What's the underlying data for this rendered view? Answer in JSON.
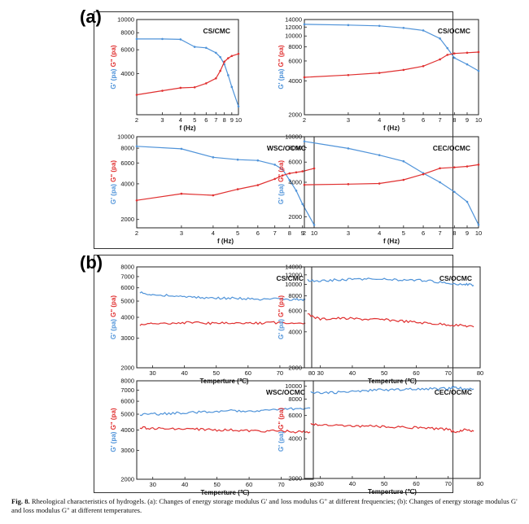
{
  "panels": [
    {
      "letter": "(a)"
    },
    {
      "letter": "(b)"
    }
  ],
  "caption": {
    "label": "Fig. 8.",
    "text": "Rheological characteristics of hydrogels. (a): Changes of energy storage modulus G' and loss modulus G\" at different frequencies; (b): Changes of energy storage modulus G' and loss modulus G\" at different temperatures."
  },
  "colors": {
    "storage": "#4f93d9",
    "loss": "#e03030"
  },
  "chart_data": [
    {
      "type": "line",
      "title": "CS/CMC",
      "xlabel": "f (Hz)",
      "ylabel_storage": "G' (pa)",
      "ylabel_loss": "G\" (pa)",
      "x_scale": "log",
      "y_scale": "log",
      "xlim": [
        2,
        10
      ],
      "ylim": [
        2000,
        10000
      ],
      "x_ticks": [
        "2",
        "3",
        "4",
        "5",
        "6",
        "7",
        "8",
        "9",
        "10"
      ],
      "y_ticks": [
        "4000",
        "6000",
        "8000",
        "10000"
      ],
      "series": [
        {
          "x": [
            2,
            3,
            4,
            5,
            6,
            7,
            7.5,
            8,
            8.5,
            9,
            10
          ],
          "values": [
            7200,
            7200,
            7150,
            6300,
            6200,
            5700,
            5300,
            4700,
            3900,
            3200,
            2300
          ]
        },
        {
          "x": [
            2,
            3,
            4,
            5,
            6,
            7,
            7.5,
            8,
            8.5,
            9,
            10
          ],
          "values": [
            2800,
            3000,
            3150,
            3180,
            3400,
            3700,
            4200,
            4900,
            5200,
            5400,
            5600
          ]
        }
      ]
    },
    {
      "type": "line",
      "title": "CS/OCMC",
      "xlabel": "f (Hz)",
      "ylabel_storage": "G' (pa)",
      "ylabel_loss": "G\" (pa)",
      "x_scale": "log",
      "y_scale": "log",
      "xlim": [
        2,
        10
      ],
      "ylim": [
        2000,
        14000
      ],
      "x_ticks": [
        "2",
        "3",
        "4",
        "5",
        "6",
        "7",
        "8",
        "9",
        "10"
      ],
      "y_ticks": [
        "2000",
        "4000",
        "6000",
        "8000",
        "10000",
        "12000",
        "14000"
      ],
      "series": [
        {
          "x": [
            2,
            3,
            4,
            5,
            6,
            7,
            7.5,
            8,
            9,
            10
          ],
          "values": [
            12700,
            12500,
            12300,
            11800,
            11200,
            9500,
            7800,
            6400,
            5600,
            4900
          ]
        },
        {
          "x": [
            2,
            3,
            4,
            5,
            6,
            7,
            7.5,
            8,
            9,
            10
          ],
          "values": [
            4300,
            4500,
            4700,
            5000,
            5400,
            6200,
            6800,
            7000,
            7100,
            7200
          ]
        }
      ]
    },
    {
      "type": "line",
      "title": "WSC/OCMC",
      "xlabel": "f (Hz)",
      "ylabel_storage": "G' (pa)",
      "ylabel_loss": "G\" (pa)",
      "x_scale": "log",
      "y_scale": "log",
      "xlim": [
        2,
        10
      ],
      "ylim": [
        1700,
        10000
      ],
      "x_ticks": [
        "2",
        "3",
        "4",
        "5",
        "6",
        "7",
        "8",
        "9",
        "10"
      ],
      "y_ticks": [
        "2000",
        "4000",
        "6000",
        "8000",
        "10000"
      ],
      "series": [
        {
          "x": [
            2,
            3,
            4,
            5,
            6,
            7,
            7.5,
            8,
            8.5,
            9,
            10
          ],
          "values": [
            8300,
            7900,
            6700,
            6400,
            6300,
            5800,
            5300,
            4300,
            3500,
            2700,
            1800
          ]
        },
        {
          "x": [
            2,
            3,
            4,
            5,
            6,
            7,
            7.5,
            8,
            8.5,
            9,
            10
          ],
          "values": [
            2900,
            3300,
            3200,
            3600,
            3900,
            4400,
            4700,
            4900,
            5000,
            5100,
            5400
          ]
        }
      ]
    },
    {
      "type": "line",
      "title": "CEC/OCMC",
      "xlabel": "f (Hz)",
      "ylabel_storage": "G' (pa)",
      "ylabel_loss": "G\" (pa)",
      "x_scale": "log",
      "y_scale": "log",
      "xlim": [
        2,
        10
      ],
      "ylim": [
        1600,
        10000
      ],
      "x_ticks": [
        "2",
        "3",
        "4",
        "5",
        "6",
        "7",
        "8",
        "9",
        "10"
      ],
      "y_ticks": [
        "2000",
        "4000",
        "6000",
        "8000",
        "10000"
      ],
      "series": [
        {
          "x": [
            2,
            3,
            4,
            5,
            6,
            7,
            8,
            9,
            10
          ],
          "values": [
            9100,
            7900,
            6900,
            6100,
            4800,
            4000,
            3300,
            2700,
            1700
          ]
        },
        {
          "x": [
            2,
            3,
            4,
            5,
            6,
            7,
            8,
            9,
            10
          ],
          "values": [
            3800,
            3850,
            3900,
            4200,
            4700,
            5300,
            5400,
            5500,
            5700
          ]
        }
      ]
    },
    {
      "type": "line",
      "title": "CS/CMC",
      "xlabel": "Temperture (℃)",
      "ylabel_storage": "G' (pa)",
      "ylabel_loss": "G\" (pa)",
      "x_scale": "linear",
      "y_scale": "log",
      "xlim": [
        25,
        80
      ],
      "ylim": [
        2000,
        8000
      ],
      "x_ticks": [
        "30",
        "40",
        "50",
        "60",
        "70",
        "80"
      ],
      "y_ticks": [
        "2000",
        "3000",
        "4000",
        "5000",
        "6000",
        "7000",
        "8000"
      ],
      "series": [
        {
          "x": [
            26,
            30,
            35,
            40,
            45,
            50,
            55,
            60,
            65,
            70,
            75,
            78
          ],
          "values": [
            5600,
            5450,
            5400,
            5300,
            5250,
            5200,
            5200,
            5150,
            5100,
            5150,
            5100,
            5100
          ]
        },
        {
          "x": [
            26,
            30,
            35,
            40,
            45,
            50,
            55,
            60,
            65,
            70,
            75,
            78
          ],
          "values": [
            3600,
            3650,
            3700,
            3720,
            3700,
            3680,
            3700,
            3680,
            3700,
            3720,
            3700,
            3700
          ]
        }
      ]
    },
    {
      "type": "line",
      "title": "CS/OCMC",
      "xlabel": "Temperture (℃)",
      "ylabel_storage": "G' (pa)",
      "ylabel_loss": "G\" (pa)",
      "x_scale": "linear",
      "y_scale": "log",
      "xlim": [
        25,
        80
      ],
      "ylim": [
        2000,
        14000
      ],
      "x_ticks": [
        "30",
        "40",
        "50",
        "60",
        "70",
        "80"
      ],
      "y_ticks": [
        "2000",
        "4000",
        "6000",
        "8000",
        "10000",
        "12000",
        "14000"
      ],
      "series": [
        {
          "x": [
            26,
            30,
            35,
            40,
            45,
            50,
            55,
            60,
            65,
            70,
            75,
            78
          ],
          "values": [
            10800,
            10700,
            10900,
            11000,
            11100,
            11000,
            10900,
            10800,
            10600,
            10300,
            10000,
            9800
          ]
        },
        {
          "x": [
            26,
            30,
            35,
            40,
            45,
            50,
            55,
            60,
            65,
            70,
            75,
            78
          ],
          "values": [
            5600,
            5100,
            5200,
            5150,
            5100,
            5050,
            4950,
            4800,
            4700,
            4600,
            4500,
            4400
          ]
        }
      ]
    },
    {
      "type": "line",
      "title": "WSC/OCMC",
      "xlabel": "Temperture (℃)",
      "ylabel_storage": "G' (pa)",
      "ylabel_loss": "G\" (pa)",
      "x_scale": "linear",
      "y_scale": "log",
      "xlim": [
        25,
        80
      ],
      "ylim": [
        2000,
        8000
      ],
      "x_ticks": [
        "30",
        "40",
        "50",
        "60",
        "70",
        "80"
      ],
      "y_ticks": [
        "2000",
        "3000",
        "4000",
        "5000",
        "6000",
        "7000",
        "8000"
      ],
      "series": [
        {
          "x": [
            26,
            30,
            35,
            40,
            45,
            50,
            55,
            60,
            65,
            70,
            75,
            79
          ],
          "values": [
            4950,
            5000,
            5050,
            5100,
            5150,
            5200,
            5250,
            5250,
            5300,
            5350,
            5400,
            5450
          ]
        },
        {
          "x": [
            26,
            30,
            35,
            40,
            45,
            50,
            55,
            60,
            65,
            70,
            75,
            79
          ],
          "values": [
            4150,
            4100,
            4050,
            4050,
            4050,
            4000,
            4000,
            3950,
            3950,
            3950,
            3900,
            3900
          ]
        }
      ]
    },
    {
      "type": "line",
      "title": "CEC/OCMC",
      "xlabel": "Temperture (℃)",
      "ylabel_storage": "G' (pa)",
      "ylabel_loss": "G\" (pa)",
      "x_scale": "linear",
      "y_scale": "log",
      "xlim": [
        25,
        80
      ],
      "ylim": [
        2000,
        11000
      ],
      "x_ticks": [
        "30",
        "40",
        "50",
        "60",
        "70",
        "80"
      ],
      "y_ticks": [
        "2000",
        "4000",
        "6000",
        "8000",
        "10000"
      ],
      "series": [
        {
          "x": [
            27,
            30,
            35,
            40,
            45,
            50,
            55,
            60,
            65,
            70,
            72,
            75,
            78
          ],
          "values": [
            9000,
            8900,
            9000,
            9100,
            9300,
            9400,
            9450,
            9500,
            9550,
            9600,
            9800,
            9600,
            9550
          ]
        },
        {
          "x": [
            27,
            30,
            35,
            40,
            45,
            50,
            55,
            60,
            65,
            70,
            72,
            75,
            78
          ],
          "values": [
            5200,
            5100,
            5050,
            5000,
            5000,
            4950,
            4900,
            4850,
            4800,
            4700,
            4500,
            4650,
            4550
          ]
        }
      ]
    }
  ]
}
